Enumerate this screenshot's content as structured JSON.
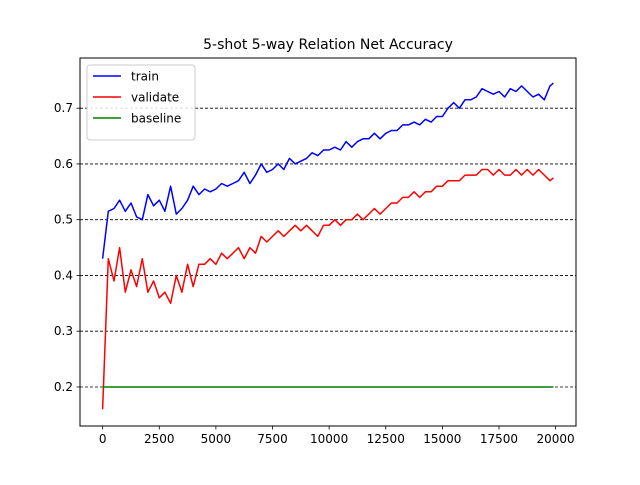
{
  "chart_data": {
    "type": "line",
    "title": "5-shot 5-way Relation Net Accuracy",
    "xlabel": "",
    "ylabel": "",
    "xlim": [
      -1000,
      20900
    ],
    "ylim": [
      0.13,
      0.79
    ],
    "xticks": [
      0,
      2500,
      5000,
      7500,
      10000,
      12500,
      15000,
      17500,
      20000
    ],
    "yticks": [
      0.2,
      0.3,
      0.4,
      0.5,
      0.6,
      0.7
    ],
    "grid": "horizontal dashed at y ticks",
    "legend": "top-left",
    "series": [
      {
        "name": "train",
        "color": "#0000ff",
        "x": [
          0,
          250,
          500,
          750,
          1000,
          1250,
          1500,
          1750,
          2000,
          2250,
          2500,
          2750,
          3000,
          3250,
          3500,
          3750,
          4000,
          4250,
          4500,
          4750,
          5000,
          5250,
          5500,
          5750,
          6000,
          6250,
          6500,
          6750,
          7000,
          7250,
          7500,
          7750,
          8000,
          8250,
          8500,
          8750,
          9000,
          9250,
          9500,
          9750,
          10000,
          10250,
          10500,
          10750,
          11000,
          11250,
          11500,
          11750,
          12000,
          12250,
          12500,
          12750,
          13000,
          13250,
          13500,
          13750,
          14000,
          14250,
          14500,
          14750,
          15000,
          15250,
          15500,
          15750,
          16000,
          16250,
          16500,
          16750,
          17000,
          17250,
          17500,
          17750,
          18000,
          18250,
          18500,
          18750,
          19000,
          19250,
          19500,
          19750,
          19900
        ],
        "values": [
          0.43,
          0.515,
          0.52,
          0.535,
          0.515,
          0.53,
          0.505,
          0.5,
          0.545,
          0.525,
          0.535,
          0.515,
          0.56,
          0.51,
          0.52,
          0.535,
          0.56,
          0.545,
          0.555,
          0.55,
          0.555,
          0.565,
          0.56,
          0.565,
          0.57,
          0.585,
          0.565,
          0.58,
          0.6,
          0.585,
          0.59,
          0.6,
          0.59,
          0.61,
          0.6,
          0.605,
          0.61,
          0.62,
          0.615,
          0.625,
          0.625,
          0.63,
          0.625,
          0.64,
          0.63,
          0.64,
          0.645,
          0.645,
          0.655,
          0.645,
          0.655,
          0.66,
          0.66,
          0.67,
          0.67,
          0.675,
          0.67,
          0.68,
          0.675,
          0.685,
          0.685,
          0.7,
          0.71,
          0.7,
          0.715,
          0.715,
          0.72,
          0.735,
          0.73,
          0.725,
          0.73,
          0.72,
          0.735,
          0.73,
          0.74,
          0.73,
          0.72,
          0.725,
          0.715,
          0.74,
          0.745
        ]
      },
      {
        "name": "validate",
        "color": "#ff0000",
        "x": [
          0,
          250,
          500,
          750,
          1000,
          1250,
          1500,
          1750,
          2000,
          2250,
          2500,
          2750,
          3000,
          3250,
          3500,
          3750,
          4000,
          4250,
          4500,
          4750,
          5000,
          5250,
          5500,
          5750,
          6000,
          6250,
          6500,
          6750,
          7000,
          7250,
          7500,
          7750,
          8000,
          8250,
          8500,
          8750,
          9000,
          9250,
          9500,
          9750,
          10000,
          10250,
          10500,
          10750,
          11000,
          11250,
          11500,
          11750,
          12000,
          12250,
          12500,
          12750,
          13000,
          13250,
          13500,
          13750,
          14000,
          14250,
          14500,
          14750,
          15000,
          15250,
          15500,
          15750,
          16000,
          16250,
          16500,
          16750,
          17000,
          17250,
          17500,
          17750,
          18000,
          18250,
          18500,
          18750,
          19000,
          19250,
          19500,
          19750,
          19900
        ],
        "values": [
          0.16,
          0.43,
          0.39,
          0.45,
          0.37,
          0.41,
          0.38,
          0.43,
          0.37,
          0.39,
          0.36,
          0.37,
          0.35,
          0.4,
          0.37,
          0.42,
          0.38,
          0.42,
          0.42,
          0.43,
          0.42,
          0.44,
          0.43,
          0.44,
          0.45,
          0.43,
          0.45,
          0.44,
          0.47,
          0.46,
          0.47,
          0.48,
          0.47,
          0.48,
          0.49,
          0.48,
          0.49,
          0.48,
          0.47,
          0.49,
          0.49,
          0.5,
          0.49,
          0.5,
          0.5,
          0.51,
          0.5,
          0.51,
          0.52,
          0.51,
          0.52,
          0.53,
          0.53,
          0.54,
          0.54,
          0.55,
          0.54,
          0.55,
          0.55,
          0.56,
          0.56,
          0.57,
          0.57,
          0.57,
          0.58,
          0.58,
          0.58,
          0.59,
          0.59,
          0.58,
          0.59,
          0.58,
          0.58,
          0.59,
          0.58,
          0.59,
          0.58,
          0.59,
          0.58,
          0.57,
          0.575
        ]
      },
      {
        "name": "baseline",
        "color": "#008000",
        "x": [
          0,
          19900
        ],
        "values": [
          0.2,
          0.2
        ]
      }
    ]
  }
}
